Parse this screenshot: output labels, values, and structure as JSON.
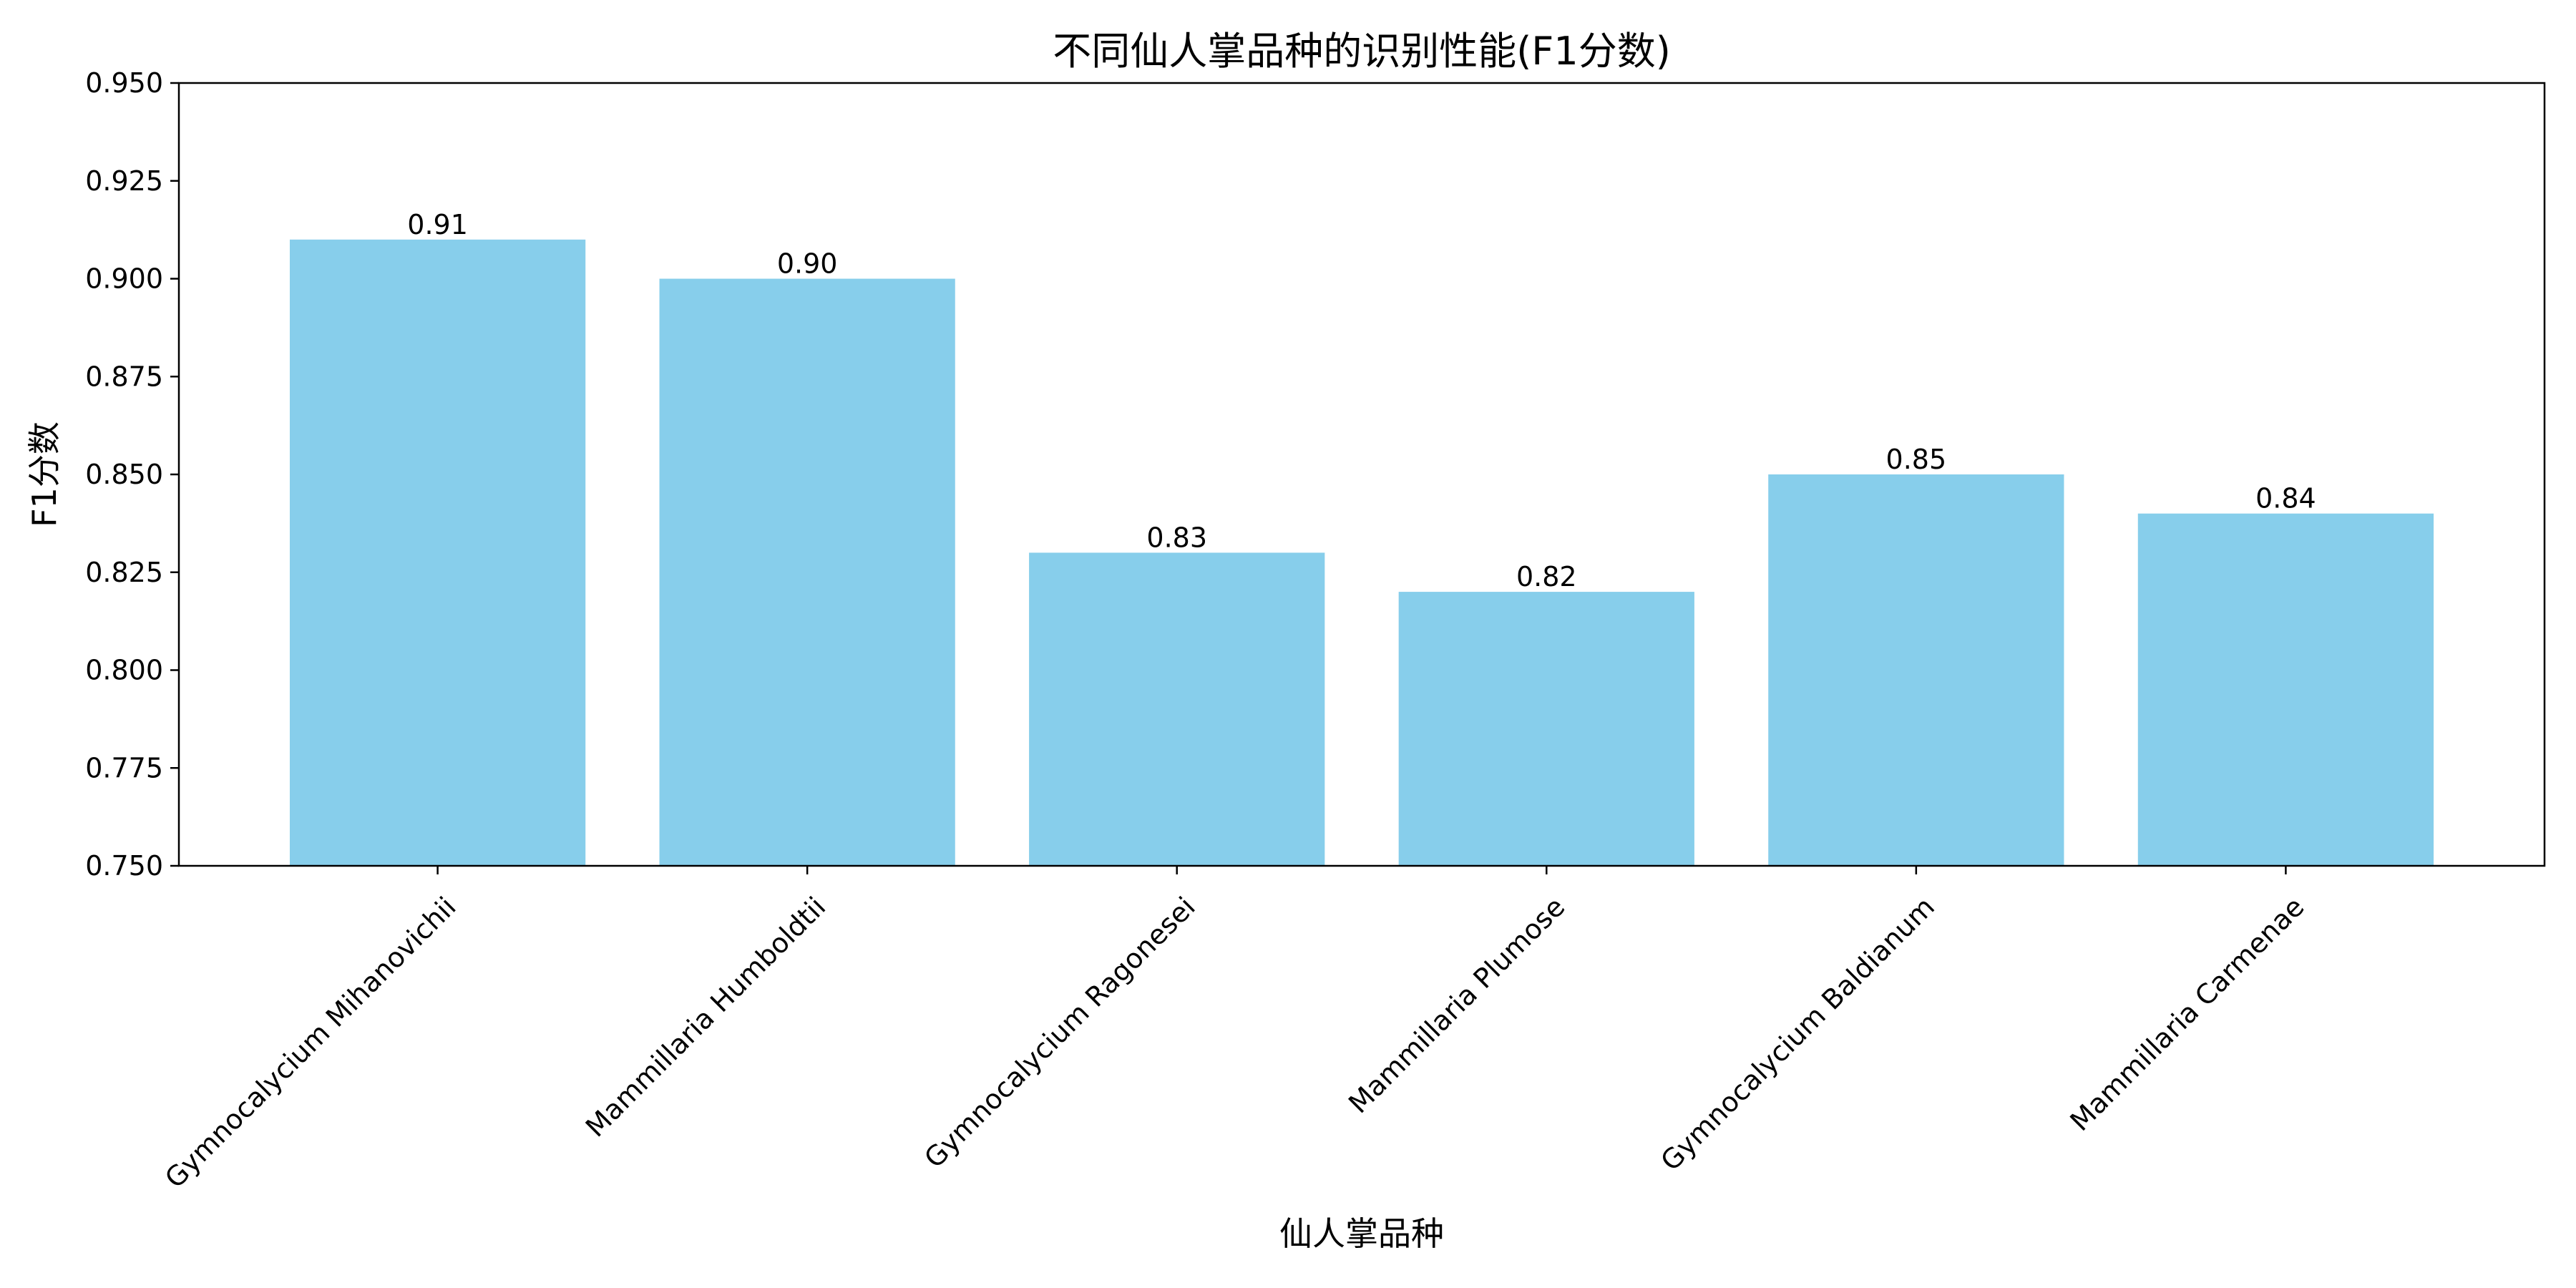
{
  "chart_data": {
    "type": "bar",
    "title": "不同仙人掌品种的识别性能(F1分数)",
    "xlabel": "仙人掌品种",
    "ylabel": "F1分数",
    "categories": [
      "Gymnocalycium Mihanovichii",
      "Mammillaria Humboldtii",
      "Gymnocalycium Ragonesei",
      "Mammillaria Plumose",
      "Gymnocalycium Baldianum",
      "Mammillaria Carmenae"
    ],
    "values": [
      0.91,
      0.9,
      0.83,
      0.82,
      0.85,
      0.84
    ],
    "value_labels": [
      "0.91",
      "0.90",
      "0.83",
      "0.82",
      "0.85",
      "0.84"
    ],
    "ylim": [
      0.75,
      0.95
    ],
    "yticks": [
      0.75,
      0.775,
      0.8,
      0.825,
      0.85,
      0.875,
      0.9,
      0.925,
      0.95
    ],
    "ytick_labels": [
      "0.750",
      "0.775",
      "0.800",
      "0.825",
      "0.850",
      "0.875",
      "0.900",
      "0.925",
      "0.950"
    ],
    "bar_color": "#87CEEB",
    "grid": false,
    "legend": "none"
  }
}
